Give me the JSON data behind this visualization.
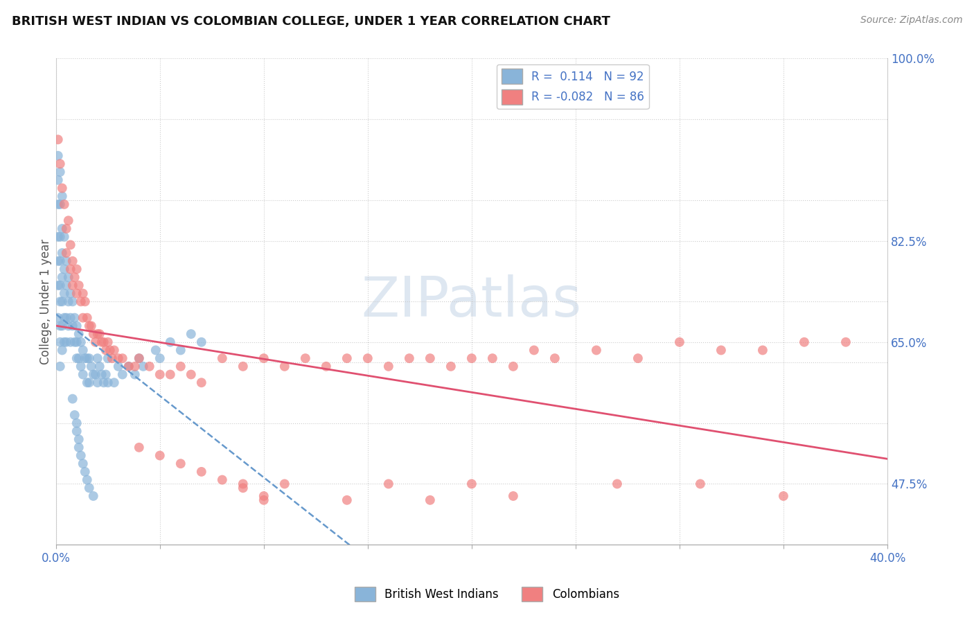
{
  "title": "BRITISH WEST INDIAN VS COLOMBIAN COLLEGE, UNDER 1 YEAR CORRELATION CHART",
  "source_text": "Source: ZipAtlas.com",
  "ylabel": "College, Under 1 year",
  "xlim": [
    0.0,
    0.4
  ],
  "ylim": [
    0.4,
    1.0
  ],
  "xticks": [
    0.0,
    0.05,
    0.1,
    0.15,
    0.2,
    0.25,
    0.3,
    0.35,
    0.4
  ],
  "xticklabels": [
    "0.0%",
    "",
    "",
    "",
    "",
    "",
    "",
    "",
    "40.0%"
  ],
  "ytick_positions": [
    0.475,
    0.55,
    0.65,
    0.7,
    0.775,
    0.825,
    0.925,
    1.0
  ],
  "ytick_right_labels": [
    "47.5%",
    "",
    "65.0%",
    "",
    "82.5%",
    "",
    "",
    "100.0%"
  ],
  "R_blue": 0.114,
  "N_blue": 92,
  "R_pink": -0.082,
  "N_pink": 86,
  "blue_color": "#89b4d9",
  "pink_color": "#f08080",
  "trend_blue_color": "#6699cc",
  "trend_pink_color": "#e05070",
  "watermark_text": "ZIPatlas",
  "watermark_color": "#c8d8e8",
  "legend_label_blue": "British West Indians",
  "legend_label_pink": "Colombians",
  "blue_scatter_x": [
    0.001,
    0.001,
    0.001,
    0.001,
    0.001,
    0.001,
    0.001,
    0.002,
    0.002,
    0.002,
    0.002,
    0.002,
    0.002,
    0.002,
    0.002,
    0.002,
    0.003,
    0.003,
    0.003,
    0.003,
    0.003,
    0.003,
    0.003,
    0.004,
    0.004,
    0.004,
    0.004,
    0.004,
    0.005,
    0.005,
    0.005,
    0.005,
    0.006,
    0.006,
    0.006,
    0.007,
    0.007,
    0.007,
    0.008,
    0.008,
    0.009,
    0.009,
    0.01,
    0.01,
    0.01,
    0.011,
    0.011,
    0.012,
    0.012,
    0.013,
    0.013,
    0.014,
    0.015,
    0.015,
    0.016,
    0.016,
    0.017,
    0.018,
    0.019,
    0.02,
    0.02,
    0.021,
    0.022,
    0.023,
    0.024,
    0.025,
    0.025,
    0.028,
    0.03,
    0.032,
    0.035,
    0.038,
    0.04,
    0.042,
    0.048,
    0.05,
    0.055,
    0.06,
    0.065,
    0.07,
    0.008,
    0.009,
    0.01,
    0.01,
    0.011,
    0.011,
    0.012,
    0.013,
    0.014,
    0.015,
    0.016,
    0.018
  ],
  "blue_scatter_y": [
    0.88,
    0.85,
    0.82,
    0.78,
    0.75,
    0.72,
    0.68,
    0.86,
    0.82,
    0.78,
    0.75,
    0.72,
    0.7,
    0.67,
    0.65,
    0.62,
    0.83,
    0.79,
    0.76,
    0.73,
    0.7,
    0.67,
    0.64,
    0.78,
    0.74,
    0.71,
    0.68,
    0.65,
    0.75,
    0.72,
    0.68,
    0.65,
    0.73,
    0.7,
    0.67,
    0.71,
    0.68,
    0.65,
    0.7,
    0.67,
    0.68,
    0.65,
    0.67,
    0.65,
    0.63,
    0.66,
    0.63,
    0.65,
    0.62,
    0.64,
    0.61,
    0.63,
    0.63,
    0.6,
    0.63,
    0.6,
    0.62,
    0.61,
    0.61,
    0.63,
    0.6,
    0.62,
    0.61,
    0.6,
    0.61,
    0.63,
    0.6,
    0.6,
    0.62,
    0.61,
    0.62,
    0.61,
    0.63,
    0.62,
    0.64,
    0.63,
    0.65,
    0.64,
    0.66,
    0.65,
    0.58,
    0.56,
    0.55,
    0.54,
    0.53,
    0.52,
    0.51,
    0.5,
    0.49,
    0.48,
    0.47,
    0.46
  ],
  "pink_scatter_x": [
    0.001,
    0.002,
    0.003,
    0.004,
    0.005,
    0.005,
    0.006,
    0.007,
    0.007,
    0.008,
    0.008,
    0.009,
    0.01,
    0.01,
    0.011,
    0.012,
    0.013,
    0.013,
    0.014,
    0.015,
    0.016,
    0.017,
    0.018,
    0.019,
    0.02,
    0.021,
    0.022,
    0.023,
    0.024,
    0.025,
    0.026,
    0.027,
    0.028,
    0.03,
    0.032,
    0.035,
    0.038,
    0.04,
    0.045,
    0.05,
    0.055,
    0.06,
    0.065,
    0.07,
    0.08,
    0.09,
    0.1,
    0.11,
    0.12,
    0.13,
    0.14,
    0.15,
    0.16,
    0.17,
    0.18,
    0.19,
    0.2,
    0.21,
    0.22,
    0.23,
    0.24,
    0.26,
    0.28,
    0.3,
    0.32,
    0.34,
    0.36,
    0.38,
    0.09,
    0.1,
    0.11,
    0.14,
    0.16,
    0.18,
    0.2,
    0.22,
    0.27,
    0.31,
    0.35,
    0.04,
    0.05,
    0.06,
    0.07,
    0.08,
    0.09,
    0.1
  ],
  "pink_scatter_y": [
    0.9,
    0.87,
    0.84,
    0.82,
    0.79,
    0.76,
    0.8,
    0.77,
    0.74,
    0.75,
    0.72,
    0.73,
    0.74,
    0.71,
    0.72,
    0.7,
    0.71,
    0.68,
    0.7,
    0.68,
    0.67,
    0.67,
    0.66,
    0.65,
    0.66,
    0.66,
    0.65,
    0.65,
    0.64,
    0.65,
    0.64,
    0.63,
    0.64,
    0.63,
    0.63,
    0.62,
    0.62,
    0.63,
    0.62,
    0.61,
    0.61,
    0.62,
    0.61,
    0.6,
    0.63,
    0.62,
    0.63,
    0.62,
    0.63,
    0.62,
    0.63,
    0.63,
    0.62,
    0.63,
    0.63,
    0.62,
    0.63,
    0.63,
    0.62,
    0.64,
    0.63,
    0.64,
    0.63,
    0.65,
    0.64,
    0.64,
    0.65,
    0.65,
    0.475,
    0.46,
    0.475,
    0.455,
    0.475,
    0.455,
    0.475,
    0.46,
    0.475,
    0.475,
    0.46,
    0.52,
    0.51,
    0.5,
    0.49,
    0.48,
    0.47,
    0.455
  ]
}
